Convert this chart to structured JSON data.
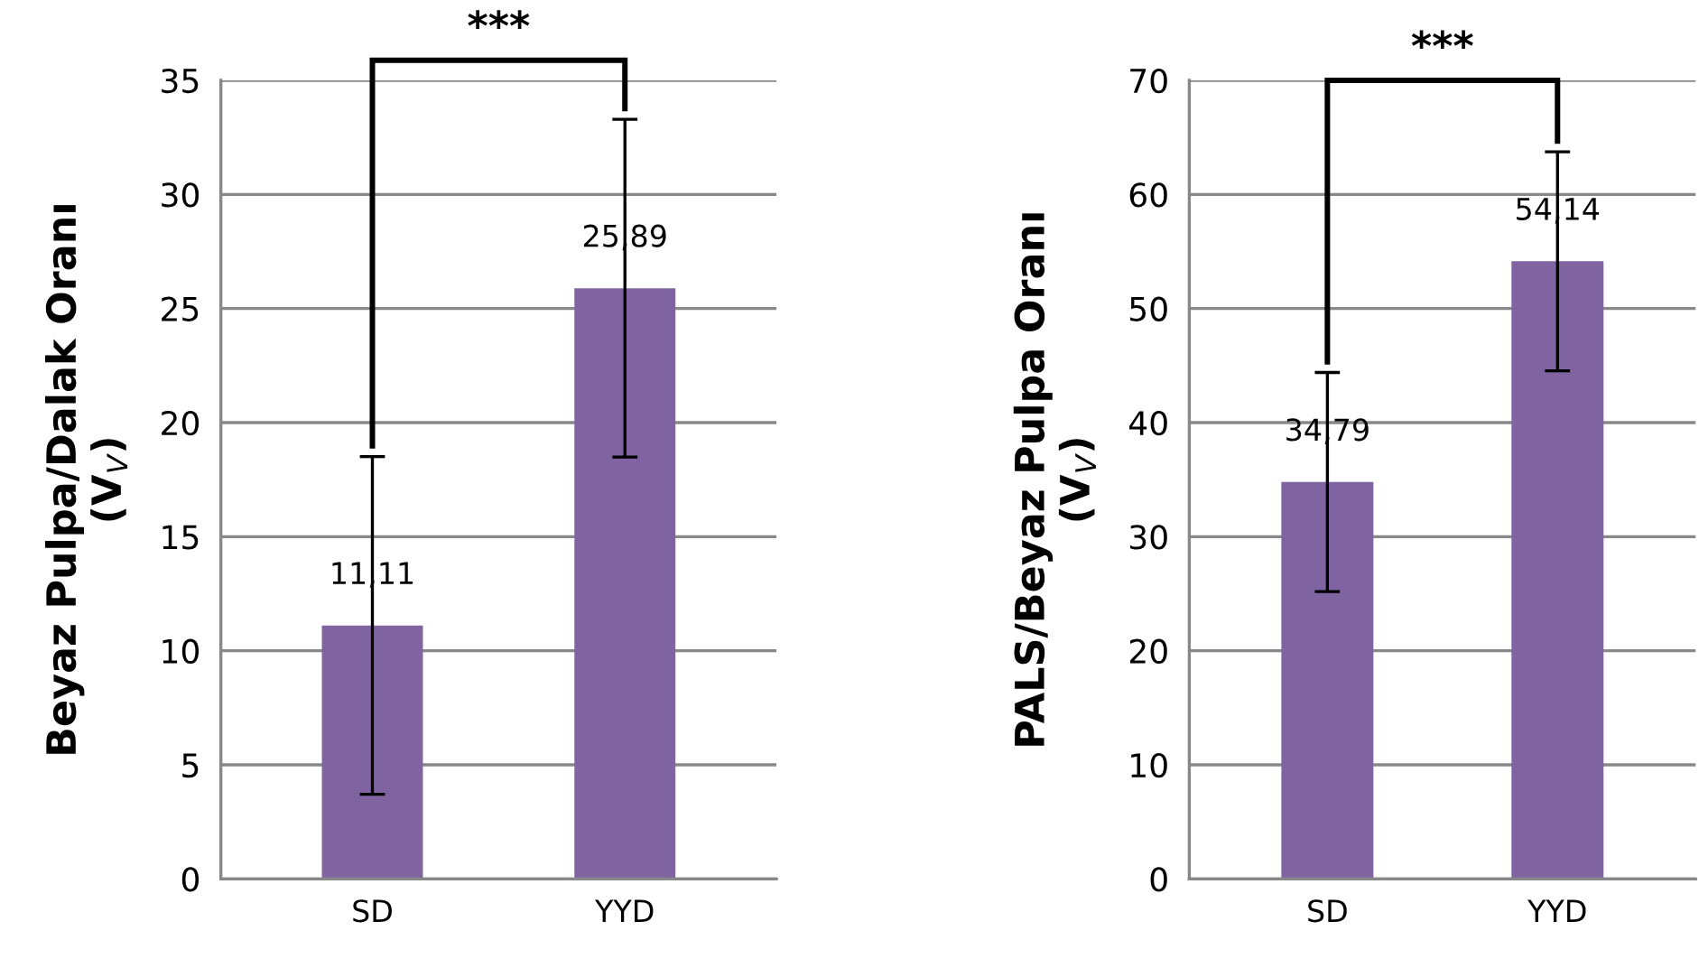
{
  "chart_data": [
    {
      "type": "bar",
      "ylabel": "Beyaz Pulpa/Dalak Oranı\n(V$_{V}$)",
      "categories": [
        "SD",
        "YYD"
      ],
      "values": [
        11.11,
        25.89
      ],
      "errors": [
        7.4,
        7.4
      ],
      "value_labels": [
        "11,11",
        "25,89"
      ],
      "color": "#8064a2",
      "ylim": [
        0,
        35
      ],
      "yticks": [
        0,
        5,
        10,
        15,
        20,
        25,
        30,
        35
      ],
      "grid": "y",
      "annotations": [
        "***"
      ]
    },
    {
      "type": "bar",
      "ylabel": "PALS/Beyaz Pulpa Oranı\n(V$_{V}$)",
      "categories": [
        "SD",
        "YYD"
      ],
      "values": [
        34.79,
        54.14
      ],
      "errors": [
        9.6,
        9.6
      ],
      "value_labels": [
        "34,79",
        "54,14"
      ],
      "color": "#8064a2",
      "ylim": [
        0,
        70
      ],
      "yticks": [
        0,
        10,
        20,
        30,
        40,
        50,
        60,
        70
      ],
      "grid": "y",
      "annotations": [
        "***"
      ]
    }
  ]
}
